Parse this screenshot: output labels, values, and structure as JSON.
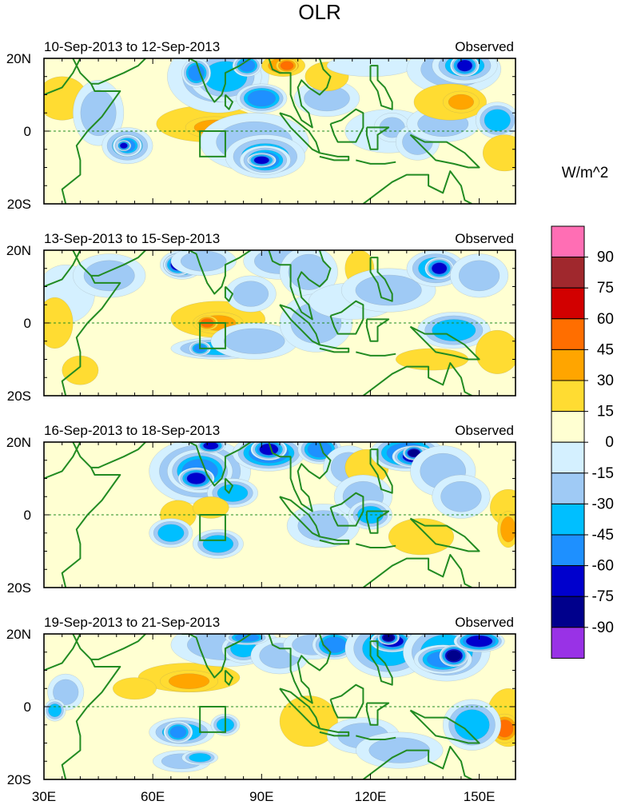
{
  "title": "OLR",
  "units": "W/m^2",
  "y_axis_labels": [
    "20N",
    "0",
    "20S"
  ],
  "x_axis_labels": [
    "30E",
    "60E",
    "90E",
    "120E",
    "150E"
  ],
  "colorbar": {
    "colors": [
      "#9932e6",
      "#00008c",
      "#0000cd",
      "#1e90ff",
      "#00bfff",
      "#9fcaf5",
      "#d4f0ff",
      "#ffffd2",
      "#ffdc32",
      "#ffa500",
      "#ff6e00",
      "#d20000",
      "#a0282d",
      "#ff6eb4"
    ],
    "labels": [
      "-90",
      "-75",
      "-60",
      "-45",
      "-30",
      "-15",
      "0",
      "15",
      "30",
      "45",
      "60",
      "75",
      "90"
    ]
  },
  "panels": [
    {
      "date_range": "10-Sep-2013 to 12-Sep-2013",
      "label": "Observed"
    },
    {
      "date_range": "13-Sep-2013 to 15-Sep-2013",
      "label": "Observed"
    },
    {
      "date_range": "16-Sep-2013 to 18-Sep-2013",
      "label": "Observed"
    },
    {
      "date_range": "19-Sep-2013 to 21-Sep-2013",
      "label": "Observed"
    }
  ],
  "colors": {
    "background_field": "#ffffd2",
    "coastline": "#228b22",
    "equator_line": "#228b22"
  }
}
